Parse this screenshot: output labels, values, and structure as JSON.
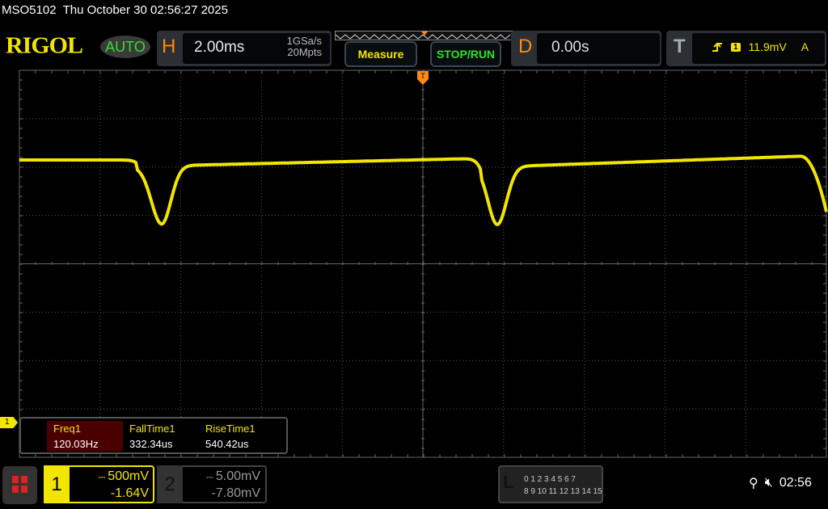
{
  "title_bar": {
    "model": "MSO5102",
    "datetime": "Thu October 30 02:56:27 2025"
  },
  "logo": "RIGOL",
  "trigger_mode": "AUTO",
  "horizontal": {
    "label": "H",
    "timebase": "2.00ms",
    "sample_rate": "1GSa/s",
    "memory_depth": "20Mpts"
  },
  "buttons": {
    "measure": "Measure",
    "stop_run": "STOP/RUN"
  },
  "delay": {
    "label": "D",
    "value": "0.00s"
  },
  "trigger": {
    "label": "T",
    "slope_icon": "rising-edge-icon",
    "source": "1",
    "level": "11.9mV",
    "mode": "A",
    "marker": "T"
  },
  "channel_marker": "1",
  "measurements": [
    {
      "name": "Freq1",
      "value": "120.03Hz"
    },
    {
      "name": "FallTime1",
      "value": "332.34us"
    },
    {
      "name": "RiseTime1",
      "value": "540.42us"
    }
  ],
  "channels": [
    {
      "num": "1",
      "scale": "500mV",
      "offset": "-1.64V",
      "coupling_icon": "dc-coupling-icon",
      "color": "#f2e500",
      "active": true
    },
    {
      "num": "2",
      "scale": "5.00mV",
      "offset": "-7.80mV",
      "coupling_icon": "dc-coupling-icon",
      "color": "#888888",
      "active": false
    }
  ],
  "logic": {
    "label": "L",
    "row1": "0 1 2 3  4 5 6 7",
    "row2": "8 9 10 11 12 13 14 15"
  },
  "status": {
    "usb_icon": "usb-icon",
    "sound_icon": "mute-icon",
    "time": "02:56"
  },
  "colors": {
    "ch1": "#f2e500",
    "accent_orange": "#ff8a10",
    "green": "#2fe02f"
  }
}
